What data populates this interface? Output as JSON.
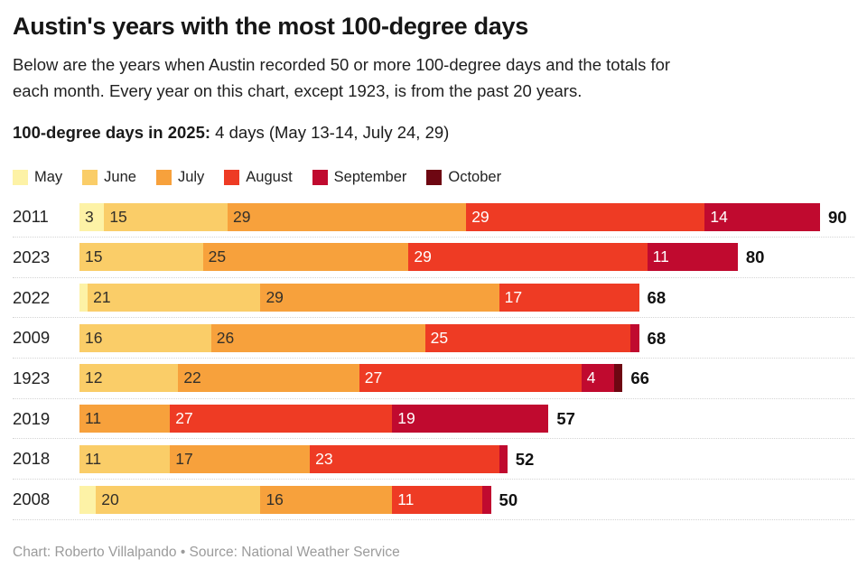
{
  "header": {
    "title": "Austin's years with the most 100-degree days",
    "subtitle_line1": "Below are the years when Austin recorded 50 or more 100-degree days and the totals for",
    "subtitle_line2": "each month. Every year on this chart, except 1923, is from the past 20 years.",
    "note_bold": "100-degree days in 2025:",
    "note_rest": " 4 days (May 13-14, July 24, 29)"
  },
  "chart_data": {
    "type": "bar",
    "orientation": "horizontal",
    "stacked": true,
    "categories": [
      "2011",
      "2023",
      "2022",
      "2009",
      "1923",
      "2019",
      "2018",
      "2008"
    ],
    "months": [
      "May",
      "June",
      "July",
      "August",
      "September",
      "October"
    ],
    "series": [
      {
        "name": "May",
        "values": [
          3,
          0,
          1,
          0,
          0,
          0,
          0,
          2
        ]
      },
      {
        "name": "June",
        "values": [
          15,
          15,
          21,
          16,
          12,
          0,
          11,
          20
        ]
      },
      {
        "name": "July",
        "values": [
          29,
          25,
          29,
          26,
          22,
          11,
          17,
          16
        ]
      },
      {
        "name": "August",
        "values": [
          29,
          29,
          17,
          25,
          27,
          27,
          23,
          11
        ]
      },
      {
        "name": "September",
        "values": [
          14,
          11,
          0,
          1,
          4,
          19,
          1,
          1
        ]
      },
      {
        "name": "October",
        "values": [
          0,
          0,
          0,
          0,
          1,
          0,
          0,
          0
        ]
      }
    ],
    "totals": [
      90,
      80,
      68,
      68,
      66,
      57,
      52,
      50
    ],
    "xmax": 90,
    "value_label_min": 3,
    "colors": {
      "May": "#FDF2A6",
      "June": "#FACD68",
      "July": "#F7A13C",
      "August": "#EE3B24",
      "September": "#C00A2F",
      "October": "#6E0712"
    },
    "dark_text_months": [
      "May",
      "June",
      "July"
    ],
    "dark_label_color": "#33302a",
    "light_label_color": "#ffffff",
    "legend_position": "top",
    "grid": "off"
  },
  "footer": {
    "credit": "Chart: Roberto Villalpando • Source: National Weather Service"
  }
}
